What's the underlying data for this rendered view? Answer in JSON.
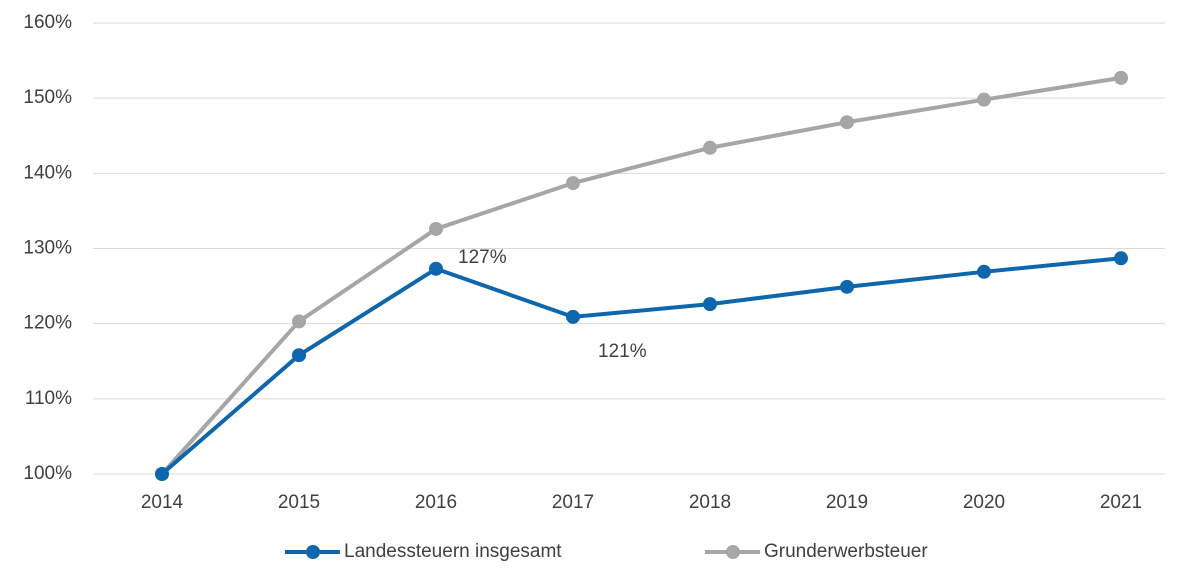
{
  "chart_data": {
    "type": "line",
    "categories": [
      "2014",
      "2015",
      "2016",
      "2017",
      "2018",
      "2019",
      "2020",
      "2021"
    ],
    "series": [
      {
        "name": "Landessteuern insgesamt",
        "color": "#0e66ac",
        "values": [
          100,
          115.8,
          127.3,
          120.9,
          122.6,
          124.9,
          126.9,
          128.7
        ],
        "value_labels": [
          null,
          null,
          "127%",
          "121%",
          null,
          null,
          null,
          null
        ]
      },
      {
        "name": "Grunderwerbsteuer",
        "color": "#a6a6a6",
        "values": [
          100,
          120.3,
          132.6,
          138.7,
          143.4,
          146.8,
          149.8,
          152.7
        ]
      }
    ],
    "ylim": [
      100,
      160
    ],
    "yticks": [
      {
        "value": 100,
        "label": "100%"
      },
      {
        "value": 110,
        "label": "110%"
      },
      {
        "value": 120,
        "label": "120%"
      },
      {
        "value": 130,
        "label": "130%"
      },
      {
        "value": 140,
        "label": "140%"
      },
      {
        "value": 150,
        "label": "150%"
      },
      {
        "value": 160,
        "label": "160%"
      }
    ],
    "grid": true,
    "legend": "bottom"
  }
}
